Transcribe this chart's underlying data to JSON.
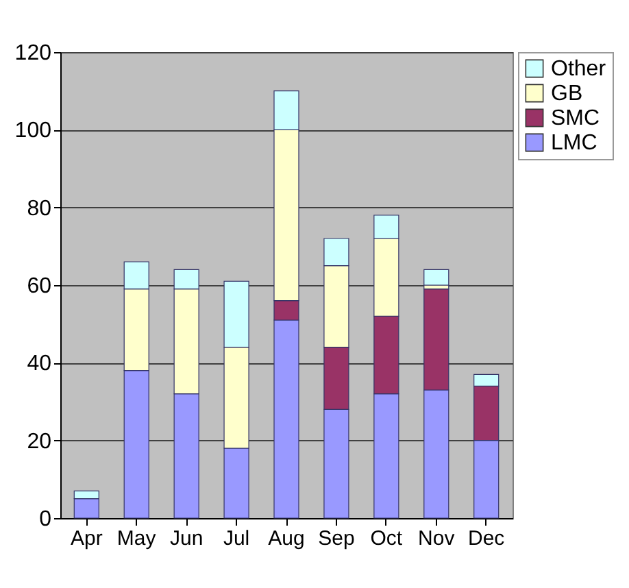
{
  "chart_data": {
    "type": "bar",
    "stacked": true,
    "categories": [
      "Apr",
      "May",
      "Jun",
      "Jul",
      "Aug",
      "Sep",
      "Oct",
      "Nov",
      "Dec"
    ],
    "series": [
      {
        "name": "LMC",
        "color": "#9999ff",
        "values": [
          5,
          38,
          32,
          18,
          51,
          28,
          32,
          33,
          20
        ]
      },
      {
        "name": "SMC",
        "color": "#993366",
        "values": [
          null,
          null,
          null,
          null,
          5,
          16,
          20,
          26,
          14
        ]
      },
      {
        "name": "GB",
        "color": "#ffffcc",
        "values": [
          null,
          21,
          27,
          26,
          44,
          21,
          20,
          1,
          null
        ]
      },
      {
        "name": "Other",
        "color": "#ccffff",
        "values": [
          2,
          7,
          5,
          17,
          10,
          7,
          6,
          4,
          3
        ]
      }
    ],
    "ylim": [
      0,
      120
    ],
    "yticks": [
      0,
      20,
      40,
      60,
      80,
      100,
      120
    ],
    "grid": "y",
    "legend": "top right"
  }
}
